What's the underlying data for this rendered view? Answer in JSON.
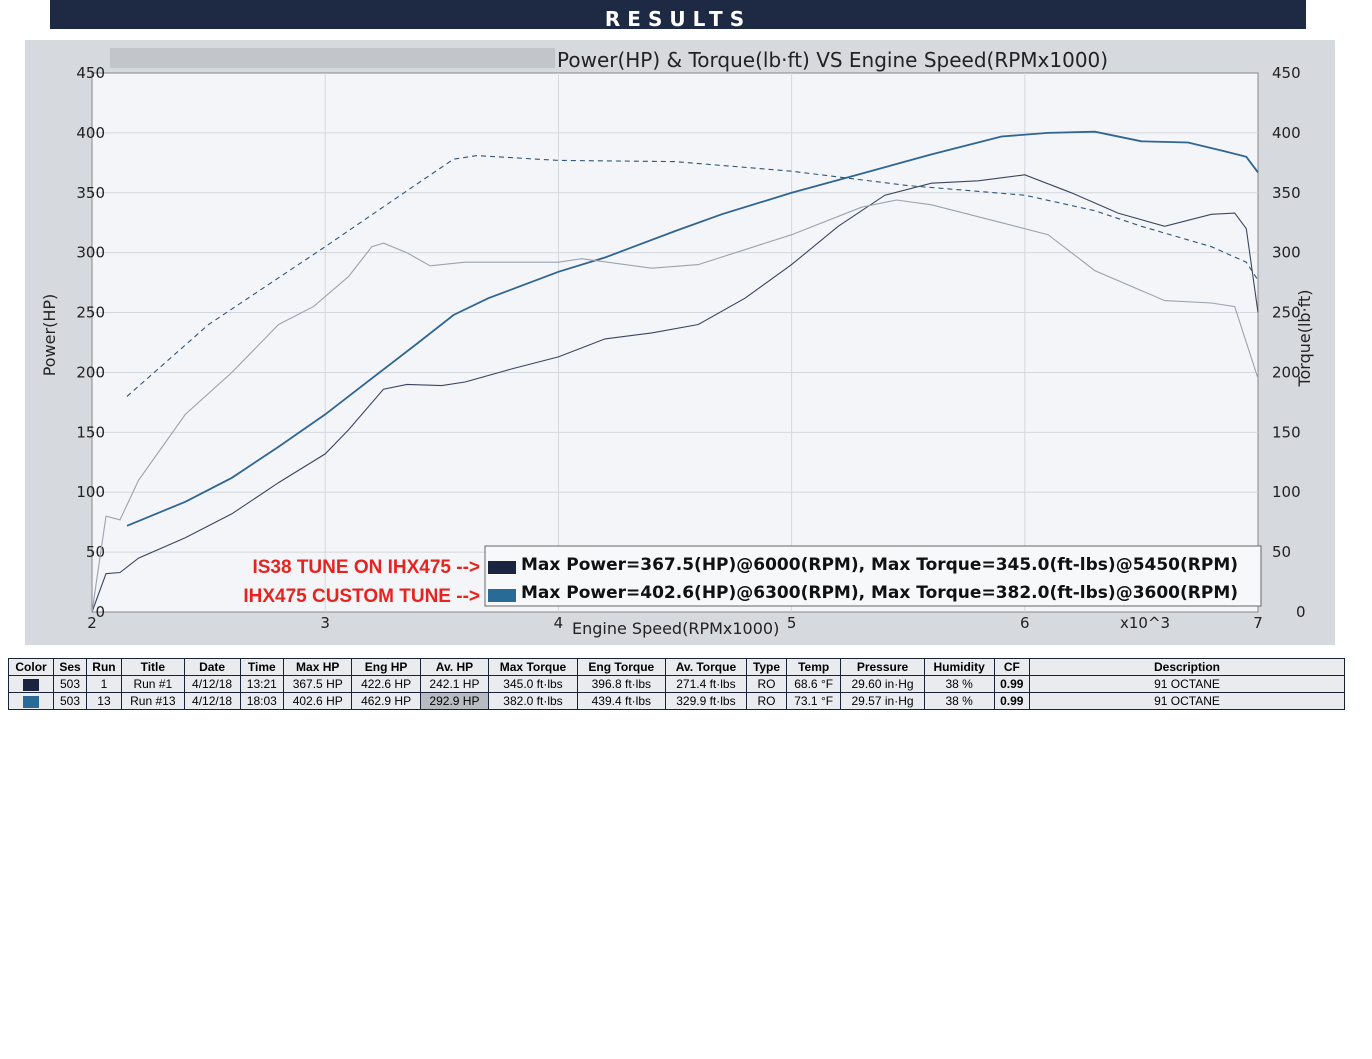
{
  "header": {
    "title": "RESULTS"
  },
  "chart_data": {
    "type": "line",
    "title": "Power(HP) & Torque(lb·ft) VS Engine Speed(RPMx1000)",
    "xlabel": "Engine Speed(RPMx1000)",
    "x_multiplier_label": "x10^3",
    "ylabel_left": "Power(HP)",
    "ylabel_right": "Torque(lb·ft)",
    "xlim": [
      2,
      7
    ],
    "ylim": [
      0,
      450
    ],
    "xticks": [
      "2",
      "3",
      "4",
      "5",
      "6",
      "7"
    ],
    "yticks": [
      "0",
      "50",
      "100",
      "150",
      "200",
      "250",
      "300",
      "350",
      "400",
      "450"
    ],
    "grid": true,
    "legend_placement": "bottom-right",
    "legend": [
      {
        "annotation": "IS38 TUNE ON IHX475 -->",
        "text": "Max Power=367.5(HP)@6000(RPM), Max Torque=345.0(ft-lbs)@5450(RPM)",
        "color": "#1a2340"
      },
      {
        "annotation": "IHX475 CUSTOM TUNE -->",
        "text": "Max Power=402.6(HP)@6300(RPM), Max Torque=382.0(ft-lbs)@3600(RPM)",
        "color": "#2a6a96"
      }
    ],
    "series": [
      {
        "run": "Run #13",
        "measure": "power",
        "color": "#2f6591",
        "style": "solid",
        "x": [
          2.15,
          2.4,
          2.6,
          2.8,
          3.0,
          3.2,
          3.4,
          3.55,
          3.7,
          4.0,
          4.2,
          4.5,
          4.7,
          5.0,
          5.3,
          5.6,
          5.9,
          6.1,
          6.3,
          6.5,
          6.7,
          6.85,
          6.95,
          7.0
        ],
        "y": [
          72,
          92,
          112,
          138,
          165,
          195,
          225,
          248,
          262,
          284,
          296,
          318,
          332,
          350,
          366,
          382,
          397,
          400,
          401,
          393,
          392,
          385,
          380,
          367
        ]
      },
      {
        "run": "Run #13",
        "measure": "torque",
        "color": "#2f5577",
        "style": "dashed",
        "x": [
          2.15,
          2.5,
          3.0,
          3.3,
          3.55,
          3.65,
          4.0,
          4.5,
          5.0,
          5.5,
          6.0,
          6.3,
          6.5,
          6.8,
          6.95,
          7.0
        ],
        "y": [
          180,
          240,
          305,
          345,
          378,
          381,
          377,
          376,
          368,
          356,
          348,
          335,
          322,
          305,
          292,
          277
        ]
      },
      {
        "run": "Run #1",
        "measure": "power",
        "color": "#3a4660",
        "style": "solid",
        "x": [
          2.0,
          2.06,
          2.12,
          2.2,
          2.4,
          2.6,
          2.8,
          3.0,
          3.1,
          3.25,
          3.35,
          3.5,
          3.6,
          3.8,
          4.0,
          4.2,
          4.4,
          4.6,
          4.8,
          5.0,
          5.2,
          5.4,
          5.6,
          5.8,
          6.0,
          6.2,
          6.4,
          6.6,
          6.8,
          6.9,
          6.95,
          7.0
        ],
        "y": [
          0,
          32,
          33,
          45,
          62,
          82,
          108,
          132,
          152,
          186,
          190,
          189,
          192,
          203,
          213,
          228,
          233,
          240,
          262,
          290,
          322,
          348,
          358,
          360,
          365,
          350,
          333,
          322,
          332,
          333,
          320,
          250
        ]
      },
      {
        "run": "Run #1",
        "measure": "torque",
        "color": "#9aa3b0",
        "style": "solid",
        "x": [
          2.0,
          2.06,
          2.12,
          2.2,
          2.4,
          2.6,
          2.8,
          2.95,
          3.1,
          3.2,
          3.25,
          3.35,
          3.45,
          3.6,
          4.0,
          4.1,
          4.4,
          4.6,
          5.0,
          5.3,
          5.45,
          5.6,
          5.9,
          6.1,
          6.3,
          6.6,
          6.8,
          6.9,
          7.0
        ],
        "y": [
          0,
          80,
          77,
          110,
          165,
          200,
          240,
          255,
          280,
          305,
          308,
          300,
          289,
          292,
          292,
          295,
          287,
          290,
          315,
          338,
          344,
          340,
          325,
          315,
          285,
          260,
          258,
          255,
          195
        ]
      }
    ]
  },
  "table": {
    "headers": [
      "Color",
      "Ses",
      "Run",
      "Title",
      "Date",
      "Time",
      "Max HP",
      "Eng HP",
      "Av. HP",
      "Max Torque",
      "Eng Torque",
      "Av. Torque",
      "Type",
      "Temp",
      "Pressure",
      "Humidity",
      "CF",
      "Description"
    ],
    "rows": [
      {
        "color": "#1a2340",
        "cells": [
          "503",
          "1",
          "Run #1",
          "4/12/18",
          "13:21",
          "367.5 HP",
          "422.6 HP",
          "242.1 HP",
          "345.0 ft·lbs",
          "396.8 ft·lbs",
          "271.4 ft·lbs",
          "RO",
          "68.6 °F",
          "29.60 in·Hg",
          "38 %",
          "0.99",
          "91 OCTANE"
        ]
      },
      {
        "color": "#2a6a96",
        "cells": [
          "503",
          "13",
          "Run #13",
          "4/12/18",
          "18:03",
          "402.6 HP",
          "462.9 HP",
          "292.9 HP",
          "382.0 ft·lbs",
          "439.4 ft·lbs",
          "329.9 ft·lbs",
          "RO",
          "73.1 °F",
          "29.57 in·Hg",
          "38 %",
          "0.99",
          "91 OCTANE"
        ]
      }
    ]
  }
}
